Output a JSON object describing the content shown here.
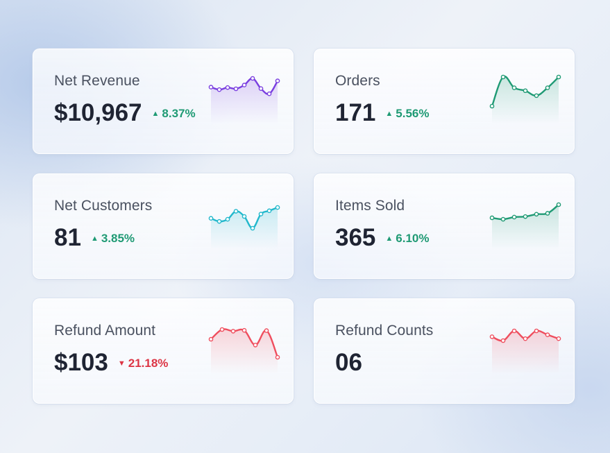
{
  "cards": [
    {
      "key": "net-revenue",
      "title": "Net Revenue",
      "value": "$10,967",
      "delta": "8.37%",
      "trend": "up",
      "color": "#7a3fe0",
      "spark": [
        58,
        46,
        56,
        50,
        68,
        100,
        51,
        26,
        88
      ]
    },
    {
      "key": "orders",
      "title": "Orders",
      "value": "171",
      "delta": "5.56%",
      "trend": "up",
      "color": "#1f9a74",
      "spark": [
        0,
        100,
        63,
        53,
        36,
        63,
        100
      ]
    },
    {
      "key": "net-customers",
      "title": "Net Customers",
      "value": "81",
      "delta": "3.85%",
      "trend": "up",
      "color": "#22b8cc",
      "spark": [
        42,
        29,
        38,
        72,
        50,
        0,
        60,
        74,
        88
      ]
    },
    {
      "key": "items-sold",
      "title": "Items Sold",
      "value": "365",
      "delta": "6.10%",
      "trend": "up",
      "color": "#1f9a74",
      "spark": [
        27,
        19,
        31,
        34,
        47,
        52,
        100
      ]
    },
    {
      "key": "refund-amount",
      "title": "Refund Amount",
      "value": "$103",
      "delta": "21.18%",
      "trend": "down",
      "color": "#ef4e5e",
      "spark": [
        65,
        100,
        94,
        97,
        44,
        96,
        0
      ]
    },
    {
      "key": "refund-counts",
      "title": "Refund Counts",
      "value": "06",
      "delta": "",
      "trend": "",
      "color": "#ef4e5e",
      "spark": [
        40,
        0,
        100,
        20,
        100,
        60,
        20
      ]
    }
  ]
}
